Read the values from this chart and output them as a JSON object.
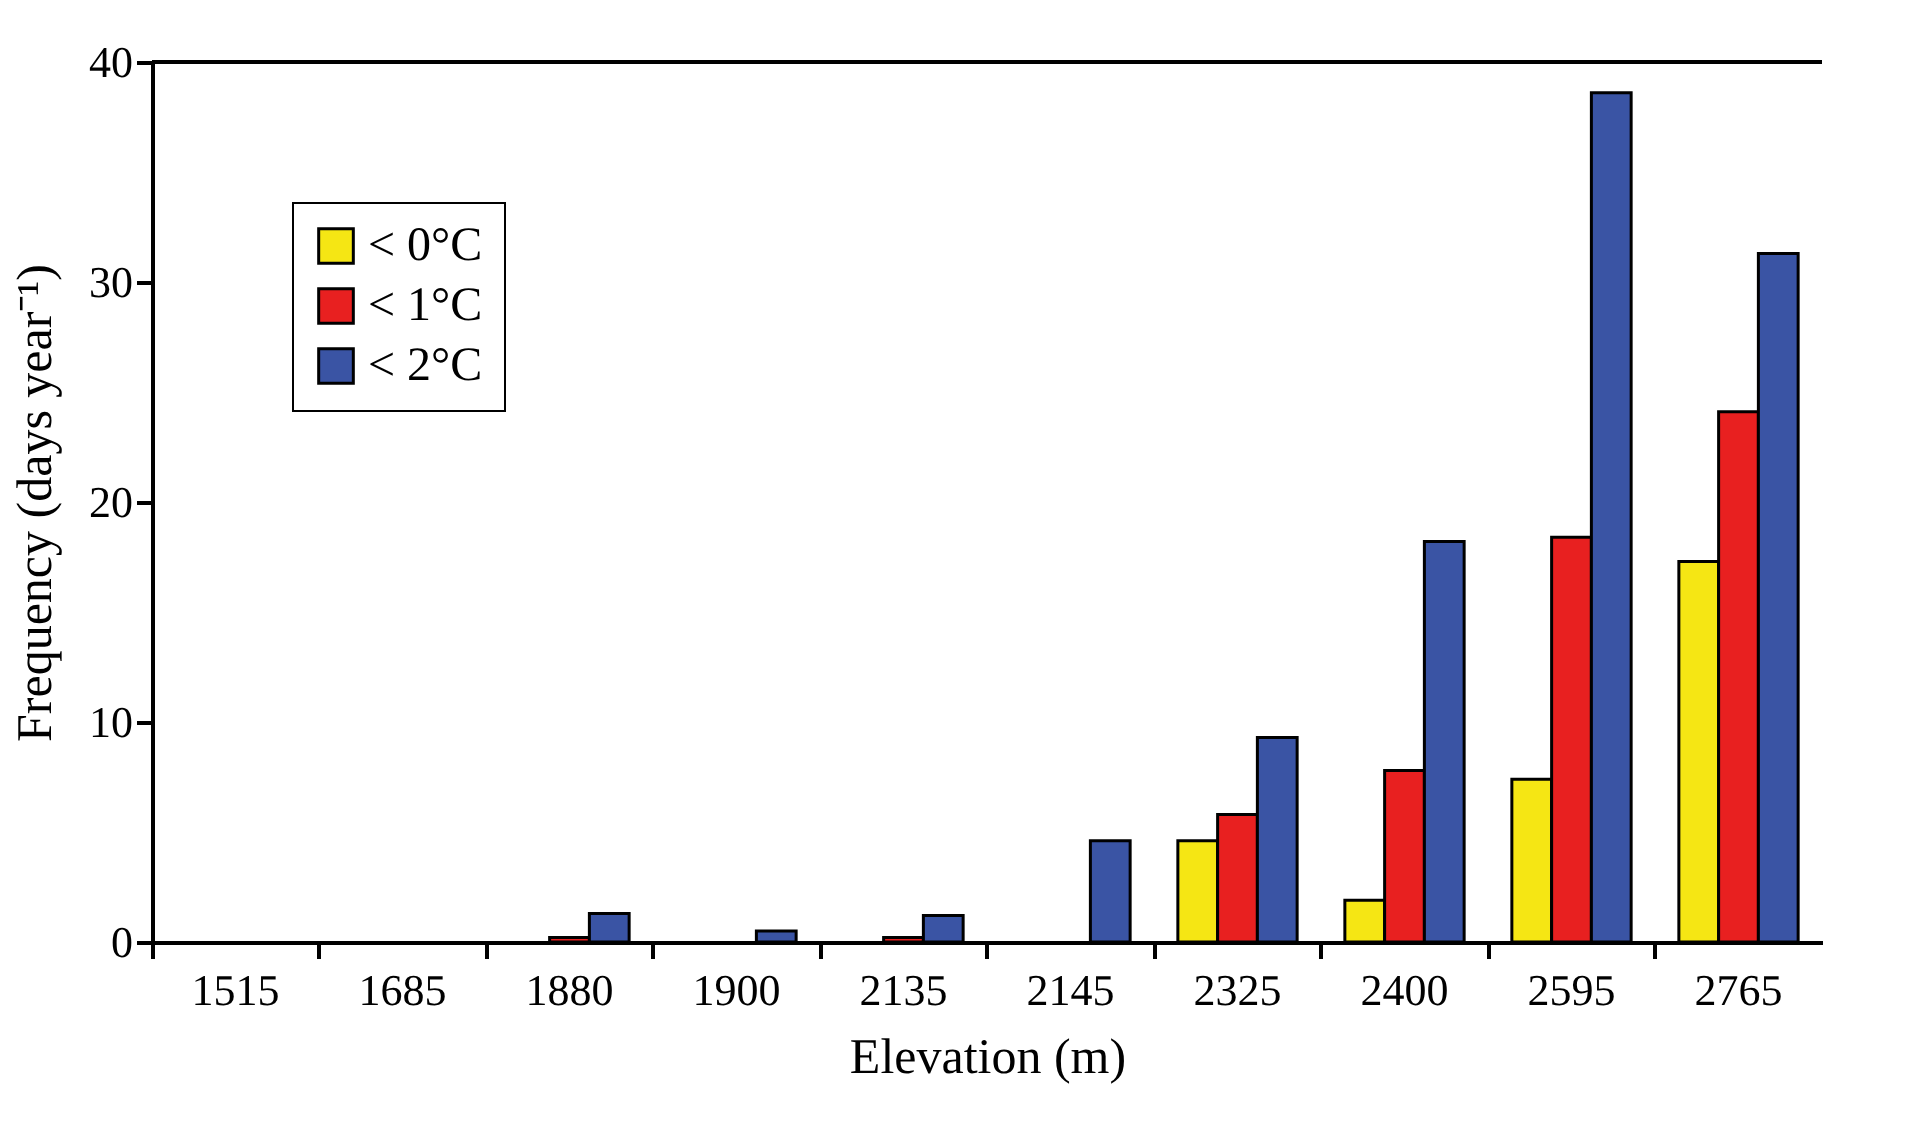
{
  "chart_data": {
    "type": "bar",
    "xlabel": "Elevation (m)",
    "ylabel": "Frequency (days year⁻¹)",
    "categories": [
      "1515",
      "1685",
      "1880",
      "1900",
      "2135",
      "2145",
      "2325",
      "2400",
      "2595",
      "2765"
    ],
    "series": [
      {
        "name": "< 0°C",
        "color": "#f5e614",
        "values": [
          null,
          null,
          null,
          null,
          null,
          null,
          4.6,
          1.9,
          7.4,
          17.3
        ]
      },
      {
        "name": "< 1°C",
        "color": "#e82020",
        "values": [
          null,
          null,
          0.2,
          null,
          0.2,
          null,
          5.8,
          7.8,
          18.4,
          24.1
        ]
      },
      {
        "name": "< 2°C",
        "color": "#3a54a4",
        "values": [
          null,
          null,
          1.3,
          0.5,
          1.2,
          4.6,
          9.3,
          18.2,
          38.6,
          31.3
        ]
      }
    ],
    "ylim": [
      0,
      40
    ],
    "yticks": [
      0,
      10,
      20,
      30,
      40
    ],
    "grid": false,
    "legend": "top left"
  }
}
